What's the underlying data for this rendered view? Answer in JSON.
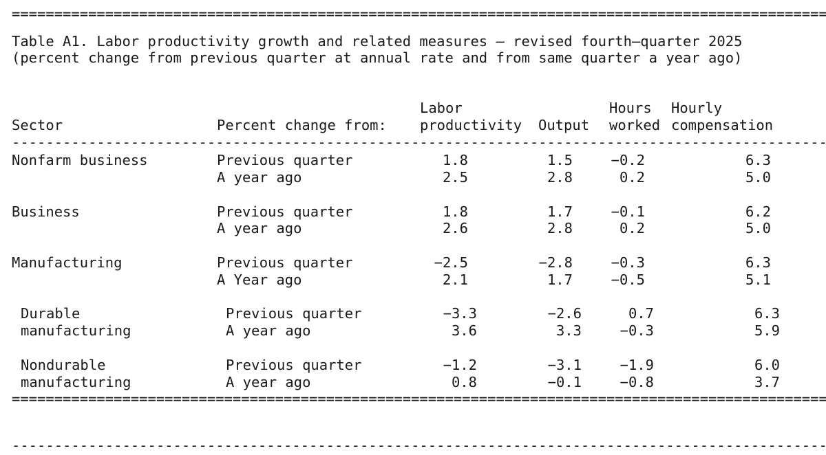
{
  "page": {
    "background_color": "#ffffff",
    "text_color": "#1a1a1a"
  },
  "document": {
    "title": "Table A1. Labor productivity growth and related measures — revised fourth—quarter 2025",
    "subtitle": "(percent change from previous quarter at annual rate and from same quarter a year ago)",
    "separators": {
      "equals_char": "=",
      "dash_char": "-",
      "repeat_count": 120
    },
    "header": {
      "sector": "Sector",
      "percent_change": "Percent change from:",
      "columns": [
        {
          "line1": "Labor",
          "line2": "productivity"
        },
        {
          "line1": "",
          "line2": "Output"
        },
        {
          "line1": "Hours",
          "line2": "worked"
        },
        {
          "line1": "Hourly",
          "line2": "compensation"
        }
      ]
    },
    "sections": [
      {
        "sector_line1": "Nonfarm business",
        "sector_line2": "",
        "indented": false,
        "rows": [
          {
            "period": "Previous quarter",
            "labor_productivity": "1.8",
            "output": "1.5",
            "hours_worked": "-0.2",
            "hourly_compensation": "6.3"
          },
          {
            "period": "A year ago",
            "labor_productivity": "2.5",
            "output": "2.8",
            "hours_worked": "0.2",
            "hourly_compensation": "5.0"
          }
        ]
      },
      {
        "sector_line1": "Business",
        "sector_line2": "",
        "indented": false,
        "rows": [
          {
            "period": "Previous quarter",
            "labor_productivity": "1.8",
            "output": "1.7",
            "hours_worked": "-0.1",
            "hourly_compensation": "6.2"
          },
          {
            "period": "A year ago",
            "labor_productivity": "2.6",
            "output": "2.8",
            "hours_worked": "0.2",
            "hourly_compensation": "5.0"
          }
        ]
      },
      {
        "sector_line1": "Manufacturing",
        "sector_line2": "",
        "indented": false,
        "rows": [
          {
            "period": "Previous quarter",
            "labor_productivity": "-2.5",
            "output": "-2.8",
            "hours_worked": "-0.3",
            "hourly_compensation": "6.3"
          },
          {
            "period": "A Year ago",
            "labor_productivity": "2.1",
            "output": "1.7",
            "hours_worked": "-0.5",
            "hourly_compensation": "5.1"
          }
        ]
      },
      {
        "sector_line1": "Durable",
        "sector_line2": "manufacturing",
        "indented": true,
        "rows": [
          {
            "period": "Previous quarter",
            "labor_productivity": "-3.3",
            "output": "-2.6",
            "hours_worked": "0.7",
            "hourly_compensation": "6.3"
          },
          {
            "period": "A year ago",
            "labor_productivity": "3.6",
            "output": "3.3",
            "hours_worked": "-0.3",
            "hourly_compensation": "5.9"
          }
        ]
      },
      {
        "sector_line1": "Nondurable",
        "sector_line2": "manufacturing",
        "indented": true,
        "rows": [
          {
            "period": "Previous quarter",
            "labor_productivity": "-1.2",
            "output": "-3.1",
            "hours_worked": "-1.9",
            "hourly_compensation": "6.0"
          },
          {
            "period": "A year ago",
            "labor_productivity": "0.8",
            "output": "-0.1",
            "hours_worked": "-0.8",
            "hourly_compensation": "3.7"
          }
        ]
      }
    ]
  }
}
